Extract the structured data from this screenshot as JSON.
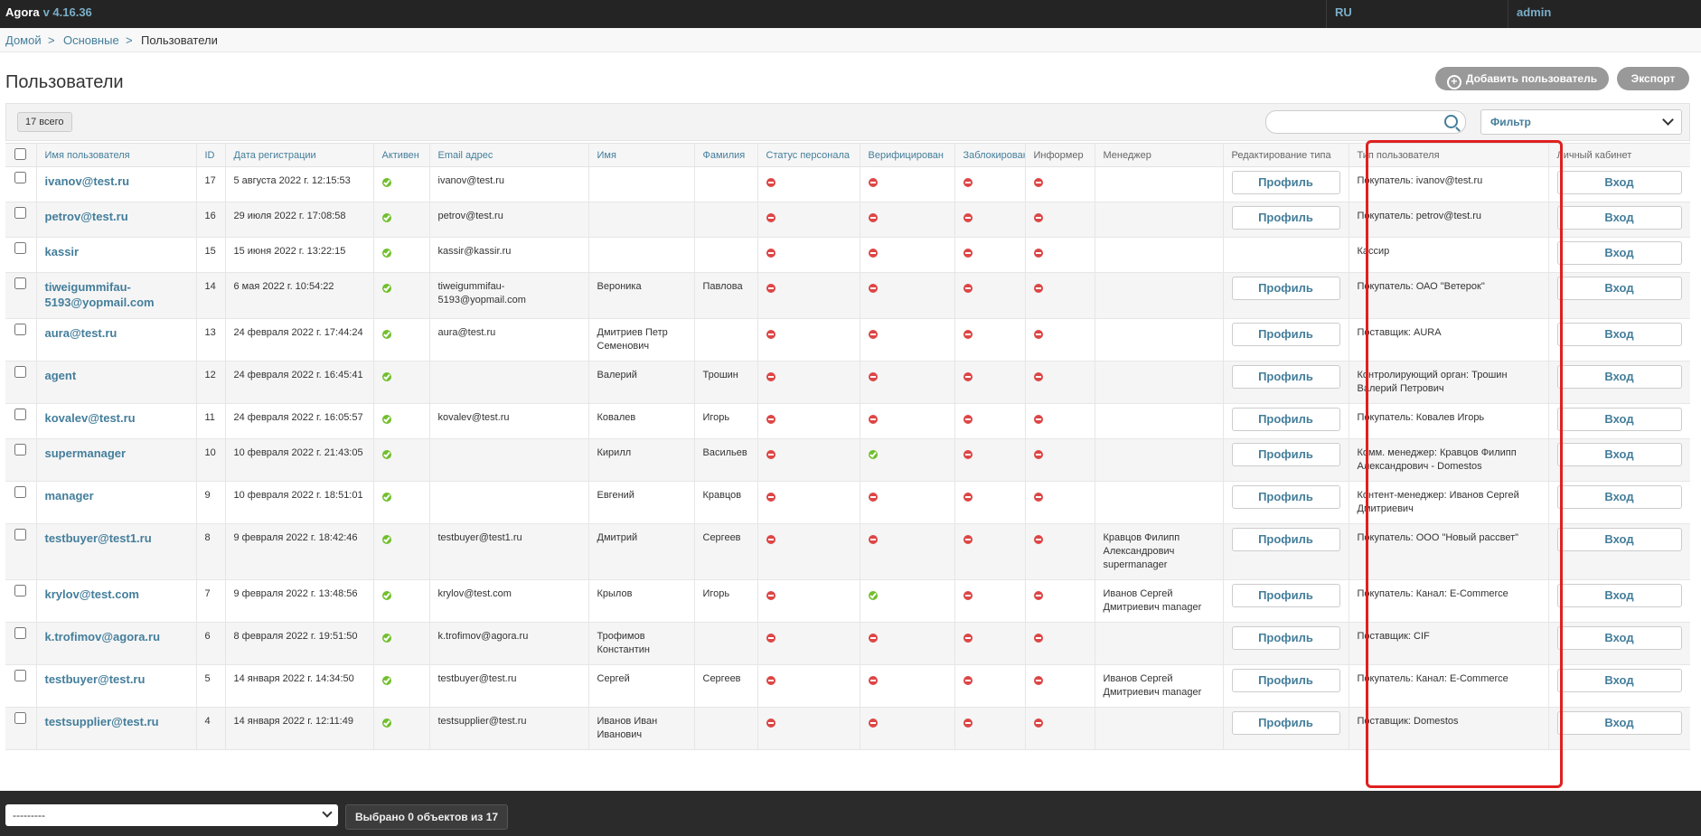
{
  "header": {
    "brand": "Agora",
    "version": "v 4.16.36",
    "lang": "RU",
    "user": "admin"
  },
  "breadcrumb": {
    "home": "Домой",
    "section": "Основные",
    "current": "Пользователи",
    "sep": ">"
  },
  "page": {
    "title": "Пользователи",
    "add_button": "Добавить пользователь",
    "export_button": "Экспорт"
  },
  "toolbar": {
    "total": "17 всего",
    "search_placeholder": "",
    "filter_label": "Фильтр"
  },
  "table": {
    "columns": [
      "Имя пользователя",
      "ID",
      "Дата регистрации",
      "Активен",
      "Email адрес",
      "Имя",
      "Фамилия",
      "Статус персонала",
      "Верифицирован",
      "Заблокирован",
      "Информер",
      "Менеджер",
      "Редактирование типа",
      "Тип пользователя",
      "Личный кабинет"
    ],
    "rows": [
      {
        "username": "ivanov@test.ru",
        "id": "17",
        "date": "5 августа 2022 г. 12:15:53",
        "active": "yes",
        "email": "ivanov@test.ru",
        "first": "",
        "last": "",
        "staff": "no",
        "verified": "no",
        "blocked": "no",
        "informer": "no",
        "manager": "",
        "edit": "Профиль",
        "type": "Покупатель: ivanov@test.ru",
        "cabinet": "Вход"
      },
      {
        "username": "petrov@test.ru",
        "id": "16",
        "date": "29 июля 2022 г. 17:08:58",
        "active": "yes",
        "email": "petrov@test.ru",
        "first": "",
        "last": "",
        "staff": "no",
        "verified": "no",
        "blocked": "no",
        "informer": "no",
        "manager": "",
        "edit": "Профиль",
        "type": "Покупатель: petrov@test.ru",
        "cabinet": "Вход"
      },
      {
        "username": "kassir",
        "id": "15",
        "date": "15 июня 2022 г. 13:22:15",
        "active": "yes",
        "email": "kassir@kassir.ru",
        "first": "",
        "last": "",
        "staff": "no",
        "verified": "no",
        "blocked": "no",
        "informer": "no",
        "manager": "",
        "edit": "",
        "type": "Кассир",
        "cabinet": "Вход"
      },
      {
        "username": "tiweigummifau-5193@yopmail.com",
        "id": "14",
        "date": "6 мая 2022 г. 10:54:22",
        "active": "yes",
        "email": "tiweigummifau-5193@yopmail.com",
        "first": "Вероника",
        "last": "Павлова",
        "staff": "no",
        "verified": "no",
        "blocked": "no",
        "informer": "no",
        "manager": "",
        "edit": "Профиль",
        "type": "Покупатель: ОАО \"Ветерок\"",
        "cabinet": "Вход"
      },
      {
        "username": "aura@test.ru",
        "id": "13",
        "date": "24 февраля 2022 г. 17:44:24",
        "active": "yes",
        "email": "aura@test.ru",
        "first": "Дмитриев Петр Семенович",
        "last": "",
        "staff": "no",
        "verified": "no",
        "blocked": "no",
        "informer": "no",
        "manager": "",
        "edit": "Профиль",
        "type": "Поставщик: AURA",
        "cabinet": "Вход"
      },
      {
        "username": "agent",
        "id": "12",
        "date": "24 февраля 2022 г. 16:45:41",
        "active": "yes",
        "email": "",
        "first": "Валерий",
        "last": "Трошин",
        "staff": "no",
        "verified": "no",
        "blocked": "no",
        "informer": "no",
        "manager": "",
        "edit": "Профиль",
        "type": "Контролирующий орган: Трошин Валерий Петрович",
        "cabinet": "Вход"
      },
      {
        "username": "kovalev@test.ru",
        "id": "11",
        "date": "24 февраля 2022 г. 16:05:57",
        "active": "yes",
        "email": "kovalev@test.ru",
        "first": "Ковалев",
        "last": "Игорь",
        "staff": "no",
        "verified": "no",
        "blocked": "no",
        "informer": "no",
        "manager": "",
        "edit": "Профиль",
        "type": "Покупатель: Ковалев Игорь",
        "cabinet": "Вход"
      },
      {
        "username": "supermanager",
        "id": "10",
        "date": "10 февраля 2022 г. 21:43:05",
        "active": "yes",
        "email": "",
        "first": "Кирилл",
        "last": "Васильев",
        "staff": "no",
        "verified": "yes",
        "blocked": "no",
        "informer": "no",
        "manager": "",
        "edit": "Профиль",
        "type": "Комм. менеджер: Кравцов Филипп Александрович - Domestos",
        "cabinet": "Вход"
      },
      {
        "username": "manager",
        "id": "9",
        "date": "10 февраля 2022 г. 18:51:01",
        "active": "yes",
        "email": "",
        "first": "Евгений",
        "last": "Кравцов",
        "staff": "no",
        "verified": "no",
        "blocked": "no",
        "informer": "no",
        "manager": "",
        "edit": "Профиль",
        "type": "Контент-менеджер: Иванов Сергей Дмитриевич",
        "cabinet": "Вход"
      },
      {
        "username": "testbuyer@test1.ru",
        "id": "8",
        "date": "9 февраля 2022 г. 18:42:46",
        "active": "yes",
        "email": "testbuyer@test1.ru",
        "first": "Дмитрий",
        "last": "Сергеев",
        "staff": "no",
        "verified": "no",
        "blocked": "no",
        "informer": "no",
        "manager": "Кравцов Филипп Александрович supermanager",
        "edit": "Профиль",
        "type": "Покупатель: ООО \"Новый рассвет\"",
        "cabinet": "Вход"
      },
      {
        "username": "krylov@test.com",
        "id": "7",
        "date": "9 февраля 2022 г. 13:48:56",
        "active": "yes",
        "email": "krylov@test.com",
        "first": "Крылов",
        "last": "Игорь",
        "staff": "no",
        "verified": "yes",
        "blocked": "no",
        "informer": "no",
        "manager": "Иванов Сергей Дмитриевич manager",
        "edit": "Профиль",
        "type": "Покупатель: Канал: E-Commerce",
        "cabinet": "Вход"
      },
      {
        "username": "k.trofimov@agora.ru",
        "id": "6",
        "date": "8 февраля 2022 г. 19:51:50",
        "active": "yes",
        "email": "k.trofimov@agora.ru",
        "first": "Трофимов Константин",
        "last": "",
        "staff": "no",
        "verified": "no",
        "blocked": "no",
        "informer": "no",
        "manager": "",
        "edit": "Профиль",
        "type": "Поставщик: CIF",
        "cabinet": "Вход"
      },
      {
        "username": "testbuyer@test.ru",
        "id": "5",
        "date": "14 января 2022 г. 14:34:50",
        "active": "yes",
        "email": "testbuyer@test.ru",
        "first": "Сергей",
        "last": "Сергеев",
        "staff": "no",
        "verified": "no",
        "blocked": "no",
        "informer": "no",
        "manager": "Иванов Сергей Дмитриевич manager",
        "edit": "Профиль",
        "type": "Покупатель: Канал: E-Commerce",
        "cabinet": "Вход"
      },
      {
        "username": "testsupplier@test.ru",
        "id": "4",
        "date": "14 января 2022 г. 12:11:49",
        "active": "yes",
        "email": "testsupplier@test.ru",
        "first": "Иванов Иван Иванович",
        "last": "",
        "staff": "no",
        "verified": "no",
        "blocked": "no",
        "informer": "no",
        "manager": "",
        "edit": "Профиль",
        "type": "Поставщик: Domestos",
        "cabinet": "Вход"
      }
    ]
  },
  "footer": {
    "action_value": "---------",
    "selected": "Выбрано 0 объектов из 17"
  },
  "colors": {
    "link": "#447e9b",
    "active_yes": "#70bf2b",
    "active_no": "#dd4646",
    "highlight": "#e02020",
    "topbar": "#242424"
  }
}
